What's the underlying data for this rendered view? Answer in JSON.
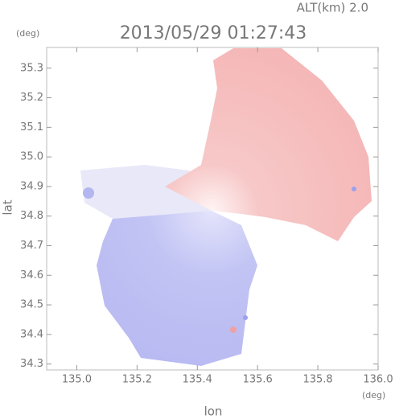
{
  "chart_data": {
    "type": "map",
    "title": "2013/05/29 01:27:43",
    "subtitle": "ALT(km) 2.0",
    "x_label": "lon",
    "y_label": "lat",
    "x_unit": "(deg)",
    "y_unit": "(deg)",
    "xlim": [
      134.9,
      136.0
    ],
    "xticks": [
      {
        "value": 135.0,
        "label": "135.0"
      },
      135.2,
      135.4,
      135.6,
      135.8,
      {
        "value": 136.0,
        "label": "136.0"
      }
    ],
    "ylim": [
      34.28,
      35.37
    ],
    "yticks": [
      34.3,
      34.4,
      34.5,
      34.6,
      34.7,
      34.8,
      34.9,
      {
        "value": 35.0,
        "label": "35.0"
      },
      35.1,
      35.2,
      35.3
    ]
  }
}
